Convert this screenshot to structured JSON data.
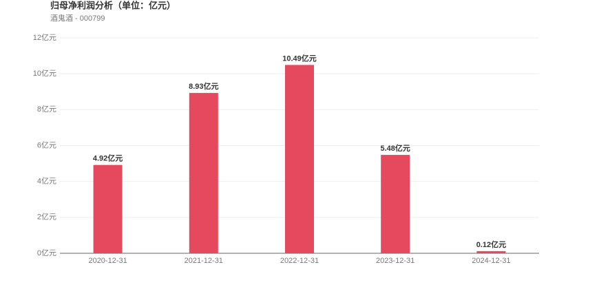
{
  "chart_data": {
    "type": "bar",
    "title": "归母净利润分析（单位：亿元）",
    "subtitle": "酒鬼酒 - 000799",
    "categories": [
      "2020-12-31",
      "2021-12-31",
      "2022-12-31",
      "2023-12-31",
      "2024-12-31"
    ],
    "values": [
      4.92,
      8.93,
      10.49,
      5.48,
      0.12
    ],
    "value_labels": [
      "4.92亿元",
      "8.93亿元",
      "10.49亿元",
      "5.48亿元",
      "0.12亿元"
    ],
    "color": "#e5495d",
    "ylim": [
      0,
      12
    ],
    "yticks": [
      {
        "value": 0,
        "label": "0亿元"
      },
      {
        "value": 2,
        "label": "2亿元"
      },
      {
        "value": 4,
        "label": "4亿元"
      },
      {
        "value": 6,
        "label": "6亿元"
      },
      {
        "value": 8,
        "label": "8亿元"
      },
      {
        "value": 10,
        "label": "10亿元"
      },
      {
        "value": 12,
        "label": "12亿元"
      }
    ],
    "grid": true
  }
}
